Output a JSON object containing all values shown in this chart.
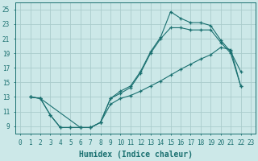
{
  "bg_color": "#cce8e8",
  "grid_color": "#aacccc",
  "line_color": "#1a7070",
  "xlabel": "Humidex (Indice chaleur)",
  "xlabel_fontsize": 7,
  "tick_fontsize": 5.5,
  "xlim": [
    -0.5,
    23.5
  ],
  "ylim": [
    8.0,
    26.0
  ],
  "xticks": [
    0,
    1,
    2,
    3,
    4,
    5,
    6,
    7,
    8,
    9,
    10,
    11,
    12,
    13,
    14,
    15,
    16,
    17,
    18,
    19,
    20,
    21,
    22,
    23
  ],
  "yticks": [
    9,
    11,
    13,
    15,
    17,
    19,
    21,
    23,
    25
  ],
  "line1_x": [
    1,
    2,
    3,
    4,
    5,
    6,
    7,
    8,
    9,
    10,
    11,
    12,
    13,
    14,
    15,
    16,
    17,
    18,
    19,
    20,
    21,
    22
  ],
  "line1_y": [
    13,
    12.8,
    10.5,
    8.8,
    8.8,
    8.8,
    8.8,
    9.5,
    12.8,
    13.8,
    14.5,
    16.5,
    19.2,
    21.2,
    24.7,
    23.8,
    23.2,
    23.2,
    22.8,
    20.8,
    19.2,
    16.5
  ],
  "line2_x": [
    1,
    2,
    3,
    4,
    5,
    6,
    7,
    8,
    9,
    10,
    11,
    12,
    13,
    14,
    15,
    16,
    17,
    18,
    19,
    20,
    21,
    22
  ],
  "line2_y": [
    13,
    12.8,
    10.5,
    8.8,
    8.8,
    8.8,
    8.8,
    9.5,
    12.8,
    13.5,
    14.3,
    16.3,
    19.0,
    21.0,
    22.5,
    22.5,
    22.2,
    22.2,
    22.2,
    20.5,
    19.0,
    14.5
  ],
  "line3_x": [
    1,
    2,
    6,
    7,
    8,
    9,
    10,
    11,
    12,
    13,
    14,
    15,
    16,
    17,
    18,
    19,
    20,
    21,
    22
  ],
  "line3_y": [
    13,
    12.8,
    8.8,
    8.8,
    9.5,
    12.0,
    12.8,
    13.2,
    13.8,
    14.5,
    15.2,
    16.0,
    16.8,
    17.5,
    18.2,
    18.8,
    19.8,
    19.5,
    14.5
  ]
}
